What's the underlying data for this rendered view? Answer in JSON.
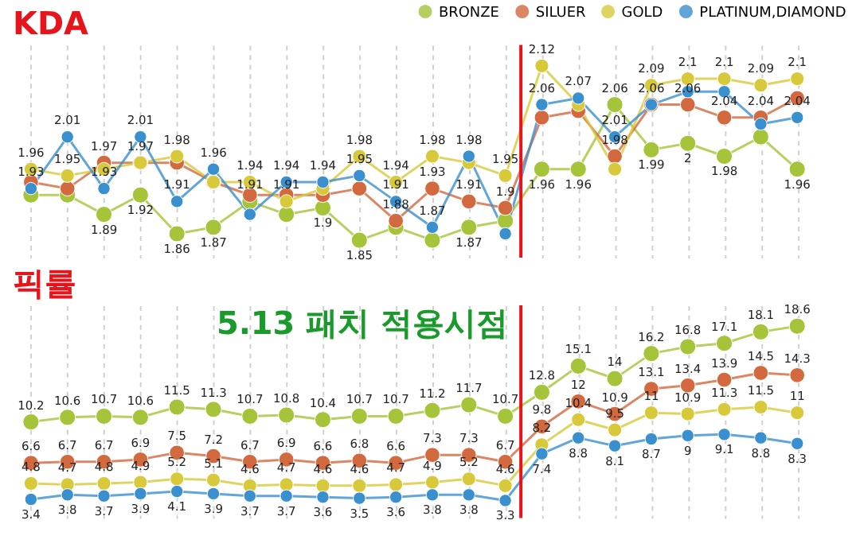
{
  "chart_data": [
    {
      "type": "line",
      "title": "KDA",
      "categories": [
        null,
        null,
        null,
        null,
        null,
        null,
        null,
        null,
        null,
        null,
        null,
        null,
        null,
        null,
        null,
        null,
        null,
        null,
        null,
        null,
        null,
        null
      ],
      "series": [
        {
          "name": "BRONZE",
          "color": "#a5c43a",
          "values": [
            1.92,
            1.92,
            1.89,
            1.92,
            1.86,
            1.87,
            1.91,
            1.89,
            1.9,
            1.85,
            1.87,
            1.85,
            1.87,
            1.88,
            1.96,
            1.96,
            2.06,
            1.99,
            2,
            1.98,
            2.01,
            1.96
          ],
          "value_labels": [
            null,
            null,
            "1.89",
            "1.92",
            "1.86",
            "1.87",
            "1.91",
            null,
            "1.9",
            "1.85",
            null,
            null,
            "1.87",
            null,
            "1.96",
            "1.96",
            "2.06",
            "1.99",
            "2",
            "1.98",
            null,
            "1.96"
          ]
        },
        {
          "name": "SILUER",
          "color": "#d2693f",
          "values": [
            1.94,
            1.93,
            1.97,
            1.97,
            1.97,
            1.94,
            1.92,
            1.92,
            1.92,
            1.93,
            1.88,
            1.93,
            1.91,
            1.9,
            2.04,
            2.05,
            1.98,
            2.06,
            2.06,
            2.04,
            2.04,
            2.07
          ],
          "value_labels": [
            null,
            null,
            "1.97",
            null,
            null,
            null,
            null,
            null,
            null,
            null,
            "1.88",
            "1.93",
            "1.91",
            "1.9",
            null,
            null,
            "1.98",
            null,
            "2.06",
            "2.04",
            "2.04",
            null
          ]
        },
        {
          "name": "GOLD",
          "color": "#d8c93a",
          "values": [
            1.96,
            1.95,
            1.96,
            1.97,
            1.98,
            1.94,
            1.94,
            1.91,
            1.93,
            1.98,
            1.94,
            1.98,
            1.97,
            1.95,
            2.12,
            2.06,
            1.96,
            2.09,
            2.1,
            2.1,
            2.09,
            2.1
          ],
          "value_labels": [
            "1.96",
            "1.95",
            null,
            "1.97",
            "1.98",
            null,
            "1.94",
            "1.91",
            null,
            "1.98",
            "1.94",
            "1.98",
            null,
            "1.95",
            "2.12",
            null,
            null,
            "2.09",
            "2.1",
            "2.1",
            "2.09",
            "2.1"
          ]
        },
        {
          "name": "PLATINUM,DIAMOND",
          "color": "#3a8fcf",
          "values": [
            1.93,
            2.01,
            1.93,
            2.01,
            1.91,
            1.96,
            1.89,
            1.94,
            1.94,
            1.95,
            1.91,
            1.87,
            1.98,
            1.86,
            2.06,
            2.07,
            2.01,
            2.06,
            2.08,
            2.08,
            2.03,
            2.04
          ],
          "value_labels": [
            "1.93",
            "2.01",
            "1.93",
            "2.01",
            "1.91",
            "1.96",
            null,
            "1.94",
            "1.94",
            "1.95",
            "1.91",
            "1.87",
            "1.98",
            null,
            "2.06",
            "2.07",
            "2.01",
            "2.06",
            null,
            null,
            null,
            "2.04"
          ]
        }
      ],
      "marker": "circle",
      "legend": "top right",
      "grid": "x",
      "tick_labels": false
    },
    {
      "type": "line",
      "title": "픽률",
      "categories": [
        null,
        null,
        null,
        null,
        null,
        null,
        null,
        null,
        null,
        null,
        null,
        null,
        null,
        null,
        null,
        null,
        null,
        null,
        null,
        null,
        null,
        null
      ],
      "series": [
        {
          "name": "BRONZE",
          "color": "#a5c43a",
          "values": [
            10.2,
            10.6,
            10.7,
            10.6,
            11.5,
            11.3,
            10.7,
            10.8,
            10.4,
            10.7,
            10.7,
            11.2,
            11.7,
            10.7,
            12.8,
            15.1,
            14,
            16.2,
            16.8,
            17.1,
            18.1,
            18.6
          ]
        },
        {
          "name": "SILUER",
          "color": "#d2693f",
          "values": [
            6.6,
            6.7,
            6.7,
            6.9,
            7.5,
            7.2,
            6.7,
            6.9,
            6.6,
            6.8,
            6.6,
            7.3,
            7.3,
            6.7,
            9.8,
            12,
            10.9,
            13.1,
            13.4,
            13.9,
            14.5,
            14.3
          ]
        },
        {
          "name": "GOLD",
          "color": "#d8c93a",
          "values": [
            4.8,
            4.7,
            4.8,
            4.9,
            5.2,
            5.1,
            4.6,
            4.7,
            4.6,
            4.6,
            4.7,
            4.9,
            5.2,
            4.6,
            8.2,
            10.4,
            9.5,
            11,
            10.9,
            11.3,
            11.5,
            11
          ]
        },
        {
          "name": "PLATINUM,DIAMOND",
          "color": "#3a8fcf",
          "values": [
            3.4,
            3.8,
            3.7,
            3.9,
            4.1,
            3.9,
            3.7,
            3.7,
            3.6,
            3.5,
            3.6,
            3.8,
            3.8,
            3.3,
            7.4,
            8.8,
            8.1,
            8.7,
            9,
            9.1,
            8.8,
            8.3
          ]
        }
      ],
      "annotations": [
        "5.13 패치 적용시점"
      ],
      "data_labels": true,
      "marker": "circle",
      "legend": "top right",
      "grid": "x",
      "tick_labels": false
    }
  ]
}
